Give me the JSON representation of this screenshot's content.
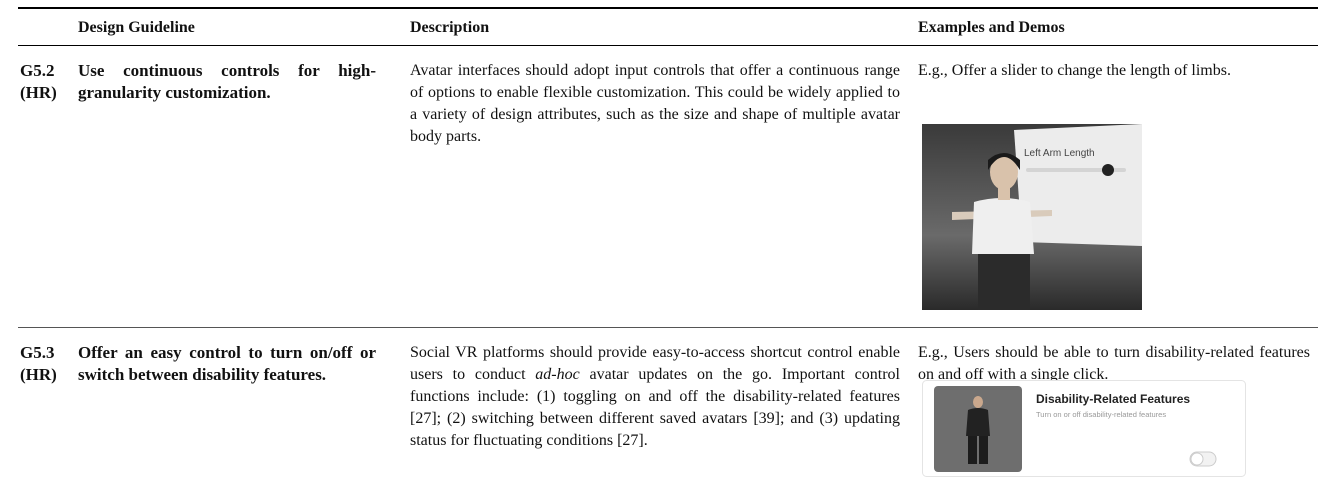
{
  "table": {
    "header": [
      "Design Guideline",
      "Description",
      "Examples and Demos"
    ],
    "rows": [
      {
        "id": "G5.2",
        "tag": "(HR)",
        "guideline": "Use continuous controls for high-granularity customization.",
        "description": [
          "Avatar interfaces should adopt input controls that offer a continuous range of options to enable flexible customization. This could be widely applied to a variety of design attributes, such as the size and shape of multiple avatar body parts."
        ],
        "example": "E.g., Offer a slider to change the length of limbs.",
        "image_text": [
          "Left Arm Length"
        ]
      },
      {
        "id": "G5.3",
        "tag": "(HR)",
        "guideline": "Offer an easy control to turn on/off or switch between disability features.",
        "description": [
          "Social VR platforms should provide easy-to-access shortcut control enable users to conduct ",
          "ad-hoc",
          " avatar updates on the go. Important control functions include: (1) toggling on and off the disability-related features [27]; (2) switching between different saved avatars [39]; and (3) updating status for fluctuating conditions [27]."
        ],
        "example": "E.g., Users should be able to turn disability-related features on and off with a single click.",
        "image_text": [
          "Disability-Related Features",
          "Turn on or off disability-related features"
        ]
      }
    ]
  }
}
